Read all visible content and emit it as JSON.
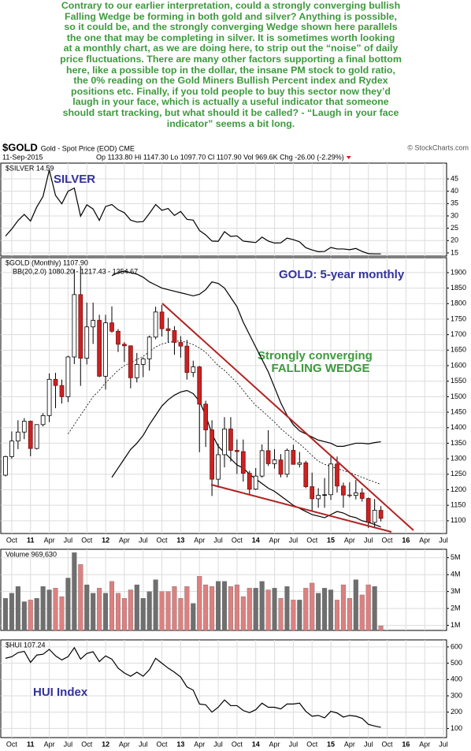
{
  "article": {
    "lines": [
      "Contrary to our earlier interpretation, could a strongly converging bullish",
      "Falling Wedge be forming in both gold and silver? Anything is possible,",
      "so it could be, and the strongly converging Wedge shown here parallels",
      "the one that may be completing in silver. It is sometimes worth looking",
      "at a monthly chart, as we are doing here, to strip out the “noise” of daily",
      "price fluctuations. There are many other factors supporting a final bottom",
      "here, like a possible top in the dollar, the insane PM stock to gold ratio,",
      "the 0%  reading on the Gold Miners Bullish Percent index and Rydex",
      "positions etc.  Finally, if you told people to buy this sector now they’d",
      "laugh in your face, which is actually a useful indicator that someone",
      "should start tracking, but what should it be called? -  “Laugh in your face",
      "indicator” seems a bit long."
    ]
  },
  "header": {
    "symbol": "$GOLD",
    "description": "Gold - Spot Price (EOD) CME",
    "source": "© StockCharts.com",
    "date": "11-Sep-2015",
    "quote": "Op 1133.80 Hi 1147.30 Lo 1097.70 Cl 1107.90 Vol 969.6K Chg -26.00 (-2.29%)"
  },
  "chart_data": [
    {
      "type": "line",
      "label": "$SILVER 14.59",
      "title": "SILVER",
      "series": [
        {
          "color": "#000000",
          "values": [
            21.8,
            24.7,
            28.1,
            30.6,
            27.9,
            33.6,
            37.9,
            48.6,
            38.3,
            34.9,
            40.0,
            41.3,
            29.9,
            34.5,
            32.8,
            28.2,
            33.8,
            34.6,
            32.5,
            31.3,
            28.3,
            27.5,
            27.7,
            31.0,
            34.6,
            32.3,
            33.0,
            30.2,
            31.8,
            28.6,
            28.3,
            24.1,
            22.3,
            19.8,
            19.7,
            23.6,
            21.7,
            21.9,
            19.8,
            19.5,
            19.2,
            21.4,
            19.8,
            19.0,
            19.1,
            21.0,
            20.4,
            19.5,
            17.1,
            16.2,
            15.5,
            15.6,
            17.2,
            16.6,
            16.6,
            16.3,
            16.8,
            15.6,
            14.7,
            14.6,
            14.59,
            null,
            null,
            null,
            null,
            null,
            null,
            null,
            null,
            null,
            null
          ]
        }
      ],
      "ylim": [
        13.7,
        51.4
      ],
      "yticks": [
        15,
        20,
        25,
        30,
        35,
        40,
        45
      ],
      "grid": true
    },
    {
      "type": "candlestick",
      "label": "$GOLD (Monthly) 1107.90",
      "bands_label": "BB(20,2.0) 1080.20 - 1217.43 - 1354.67",
      "title": "GOLD: 5-year monthly",
      "annotations": [
        "Strongly converging",
        "FALLING WEDGE"
      ],
      "categories": [
        null,
        "Oct",
        null,
        null,
        "11",
        null,
        null,
        "Apr",
        null,
        null,
        "Jul",
        null,
        null,
        "Oct",
        null,
        null,
        "12",
        null,
        null,
        "Apr",
        null,
        null,
        "Jul",
        null,
        null,
        "Oct",
        null,
        null,
        "13",
        null,
        null,
        "Apr",
        null,
        null,
        "Jul",
        null,
        null,
        "Oct",
        null,
        null,
        "14",
        null,
        null,
        "Apr",
        null,
        null,
        "Jul",
        null,
        null,
        "Oct",
        null,
        null,
        "15",
        null,
        null,
        "Apr",
        null,
        null,
        "Jul",
        null,
        null,
        "Oct",
        null,
        null,
        "16",
        null,
        null,
        "Apr",
        null,
        null,
        "Jul"
      ],
      "open": [
        1247,
        1307,
        1357,
        1386,
        1421,
        1333,
        1410,
        1439,
        1556,
        1536,
        1500,
        1628,
        1829,
        1624,
        1725,
        1746,
        1566,
        1738,
        1711,
        1669,
        1664,
        1561,
        1604,
        1622,
        1692,
        1773,
        1719,
        1713,
        1675,
        1663,
        1578,
        1596,
        1476,
        1393,
        1234,
        1313,
        1396,
        1327,
        1323,
        1253,
        1202,
        1244,
        1326,
        1284,
        1296,
        1250,
        1327,
        1282,
        1287,
        1210,
        1171,
        1182,
        1184,
        1283,
        1212,
        1183,
        1182,
        1190,
        1172,
        1095,
        1133.8,
        null,
        null,
        null,
        null,
        null,
        null,
        null,
        null,
        null,
        null
      ],
      "high": [
        1310,
        1388,
        1424,
        1431,
        1423,
        1411,
        1447,
        1575,
        1577,
        1555,
        1632,
        1911,
        1921,
        1803,
        1803,
        1764,
        1764,
        1791,
        1718,
        1676,
        1665,
        1641,
        1627,
        1697,
        1790,
        1796,
        1754,
        1727,
        1695,
        1683,
        1616,
        1599,
        1487,
        1424,
        1348,
        1434,
        1434,
        1362,
        1362,
        1261,
        1270,
        1346,
        1392,
        1331,
        1315,
        1333,
        1345,
        1322,
        1293,
        1255,
        1205,
        1238,
        1307,
        1307,
        1223,
        1224,
        1232,
        1205,
        1175,
        1170,
        1147.3,
        null,
        null,
        null,
        null,
        null,
        null,
        null,
        null,
        null,
        null
      ],
      "low": [
        1243,
        1300,
        1331,
        1363,
        1308,
        1330,
        1404,
        1418,
        1463,
        1478,
        1483,
        1605,
        1535,
        1604,
        1670,
        1563,
        1523,
        1706,
        1644,
        1612,
        1527,
        1546,
        1563,
        1584,
        1685,
        1694,
        1675,
        1635,
        1626,
        1555,
        1563,
        1321,
        1338,
        1180,
        1207,
        1272,
        1291,
        1251,
        1226,
        1182,
        1199,
        1239,
        1277,
        1268,
        1240,
        1240,
        1281,
        1272,
        1205,
        1131,
        1142,
        1142,
        1167,
        1191,
        1142,
        1175,
        1169,
        1162,
        1077,
        1077,
        1097.7,
        null,
        null,
        null,
        null,
        null,
        null,
        null,
        null,
        null,
        null
      ],
      "close": [
        1307,
        1357,
        1386,
        1421,
        1333,
        1410,
        1439,
        1556,
        1536,
        1500,
        1628,
        1829,
        1624,
        1725,
        1746,
        1566,
        1738,
        1711,
        1669,
        1664,
        1561,
        1604,
        1622,
        1692,
        1773,
        1719,
        1713,
        1675,
        1663,
        1578,
        1596,
        1476,
        1393,
        1234,
        1313,
        1396,
        1327,
        1323,
        1253,
        1202,
        1244,
        1326,
        1284,
        1296,
        1250,
        1327,
        1282,
        1287,
        1210,
        1171,
        1182,
        1184,
        1283,
        1212,
        1183,
        1182,
        1190,
        1172,
        1095,
        1134,
        1107.9,
        null,
        null,
        null,
        null,
        null,
        null,
        null,
        null,
        null,
        null
      ],
      "up_color": "#ffffff",
      "down_color": "#cc2222",
      "bands": [
        {
          "color": "#000000",
          "dashed": false,
          "values": [
            null,
            null,
            null,
            null,
            null,
            null,
            null,
            null,
            null,
            null,
            null,
            null,
            null,
            null,
            null,
            null,
            null,
            1890,
            1900,
            1905,
            1900,
            1895,
            1885,
            1870,
            1860,
            1850,
            1845,
            1840,
            1835,
            1830,
            1825,
            1830,
            1845,
            1870,
            1865,
            1850,
            1820,
            1790,
            1740,
            1700,
            1660,
            1620,
            1580,
            1530,
            1480,
            1440,
            1410,
            1390,
            1380,
            1370,
            1360,
            1355,
            1350,
            1340,
            1340,
            1345,
            1350,
            1350,
            1348,
            1352,
            1354.67,
            null,
            null,
            null,
            null,
            null,
            null,
            null,
            null,
            null,
            null
          ]
        },
        {
          "color": "#000000",
          "dashed": true,
          "values": [
            null,
            null,
            null,
            null,
            null,
            null,
            null,
            null,
            null,
            null,
            1380,
            1410,
            1440,
            1470,
            1500,
            1520,
            1545,
            1565,
            1585,
            1600,
            1610,
            1620,
            1630,
            1645,
            1660,
            1670,
            1675,
            1678,
            1680,
            1675,
            1668,
            1657,
            1643,
            1622,
            1600,
            1585,
            1565,
            1545,
            1520,
            1495,
            1472,
            1455,
            1436,
            1418,
            1397,
            1380,
            1363,
            1348,
            1330,
            1310,
            1292,
            1282,
            1275,
            1268,
            1262,
            1255,
            1248,
            1240,
            1232,
            1225,
            1217.43,
            null,
            null,
            null,
            null,
            null,
            null,
            null,
            null,
            null,
            null
          ]
        },
        {
          "color": "#000000",
          "dashed": false,
          "values": [
            null,
            null,
            null,
            null,
            null,
            null,
            null,
            null,
            null,
            null,
            null,
            null,
            null,
            null,
            null,
            null,
            null,
            1240,
            1270,
            1300,
            1330,
            1350,
            1375,
            1410,
            1440,
            1470,
            1490,
            1505,
            1515,
            1520,
            1510,
            1485,
            1440,
            1380,
            1340,
            1320,
            1300,
            1280,
            1270,
            1250,
            1235,
            1220,
            1205,
            1195,
            1180,
            1165,
            1150,
            1140,
            1130,
            1120,
            1115,
            1110,
            1120,
            1130,
            1125,
            1115,
            1110,
            1100,
            1095,
            1088,
            1080.2,
            null,
            null,
            null,
            null,
            null,
            null,
            null,
            null,
            null,
            null
          ]
        }
      ],
      "ylim": [
        1059,
        1948
      ],
      "yticks": [
        1100,
        1150,
        1200,
        1250,
        1300,
        1350,
        1400,
        1450,
        1500,
        1550,
        1600,
        1650,
        1700,
        1750,
        1800,
        1850,
        1900
      ],
      "grid": true
    },
    {
      "type": "bar",
      "label": "Volume 969,630",
      "up_color": "#6f6f6f",
      "down_color": "#dd8080",
      "values": [
        2600000,
        2900000,
        3300000,
        2400000,
        2500000,
        2600000,
        3300000,
        3100000,
        3200000,
        2700000,
        3800000,
        5300000,
        4600000,
        3400000,
        2900000,
        3200000,
        2900000,
        3600000,
        2900000,
        2600000,
        3100000,
        3400000,
        2600000,
        3000000,
        3700000,
        3000000,
        3000000,
        3300000,
        2600000,
        3300000,
        2300000,
        3900000,
        3400000,
        3300000,
        3600000,
        3600000,
        3300000,
        3400000,
        2700000,
        3200000,
        3200000,
        3600000,
        3100000,
        3200000,
        2600000,
        3300000,
        2500000,
        2500000,
        3200000,
        3500000,
        2900000,
        3200000,
        3100000,
        2500000,
        3400000,
        2600000,
        3700000,
        2800000,
        3400000,
        3300000,
        969630,
        null,
        null,
        null,
        null,
        null,
        null,
        null,
        null,
        null,
        null
      ],
      "ylim": [
        700000,
        5500000
      ],
      "yticks": [
        {
          "value": 1000000,
          "label": "1M"
        },
        {
          "value": 2000000,
          "label": "2M"
        },
        {
          "value": 3000000,
          "label": "3M"
        },
        {
          "value": 4000000,
          "label": "4M"
        },
        {
          "value": 5000000,
          "label": "5M"
        }
      ],
      "grid": true
    },
    {
      "type": "line",
      "label": "$HUI 107.24",
      "title": "HUI Index",
      "categories": [
        null,
        "Oct",
        null,
        null,
        "11",
        null,
        null,
        "Apr",
        null,
        null,
        "Jul",
        null,
        null,
        "Oct",
        null,
        null,
        "12",
        null,
        null,
        "Apr",
        null,
        null,
        "Jul",
        null,
        null,
        "Oct",
        null,
        null,
        "13",
        null,
        null,
        "Apr",
        null,
        null,
        "Jul",
        null,
        null,
        "Oct",
        null,
        null,
        "14",
        null,
        null,
        "Apr",
        null,
        null,
        "Jul",
        null,
        null,
        "Oct",
        null,
        null,
        "15",
        null,
        null,
        "Apr",
        null,
        null,
        "Jul",
        null,
        null,
        "Oct",
        null,
        null,
        "16",
        null,
        null,
        "Apr",
        null,
        null,
        "Jul"
      ],
      "series": [
        {
          "color": "#000000",
          "values": [
            530,
            540,
            565,
            573,
            505,
            550,
            555,
            585,
            545,
            520,
            540,
            595,
            525,
            560,
            570,
            510,
            545,
            525,
            470,
            440,
            420,
            445,
            420,
            460,
            530,
            500,
            470,
            445,
            415,
            355,
            335,
            250,
            245,
            200,
            230,
            275,
            240,
            240,
            210,
            197,
            215,
            255,
            230,
            230,
            220,
            250,
            250,
            255,
            205,
            175,
            180,
            165,
            205,
            195,
            170,
            180,
            175,
            162,
            125,
            115,
            107.24,
            null,
            null,
            null,
            null,
            null,
            null,
            null,
            null,
            null,
            null
          ]
        }
      ],
      "ylim": [
        44,
        643
      ],
      "yticks": [
        100,
        200,
        300,
        400,
        500,
        600
      ],
      "grid": true
    }
  ]
}
